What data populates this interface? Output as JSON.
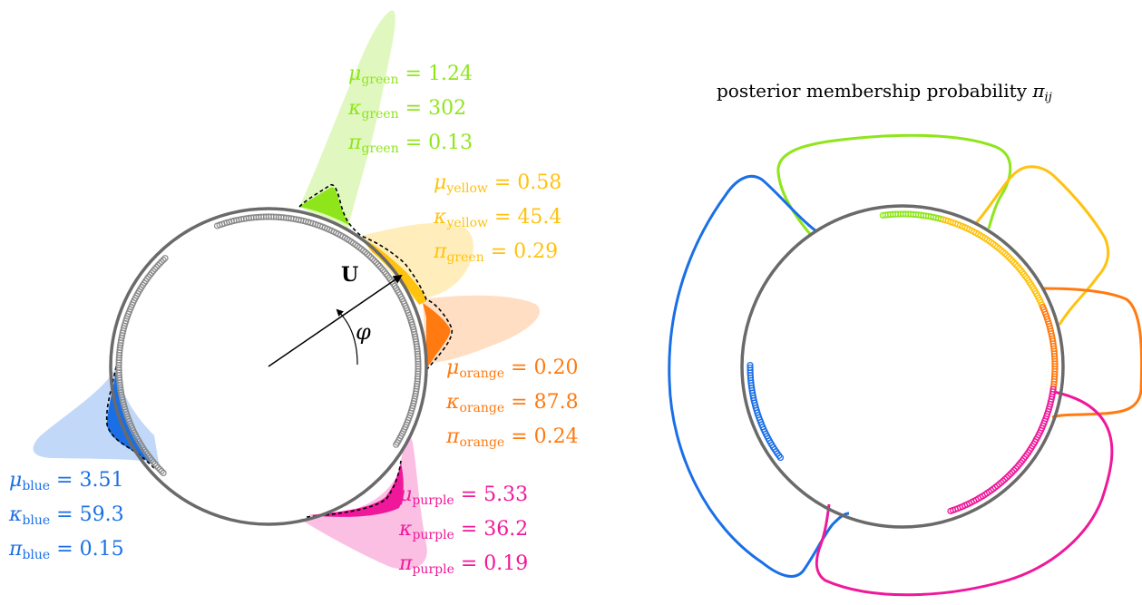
{
  "colors": {
    "green": "#8ee61a",
    "yellow": "#ffc20e",
    "orange": "#ff7a10",
    "blue": "#1a6fe6",
    "purple": "#f0189a",
    "circle": "#6a6a6a",
    "dashed": "#000000"
  },
  "left_panel": {
    "vector_label": "U",
    "angle_label": "φ",
    "components": [
      {
        "key": "green",
        "mu_sym": "μ",
        "kappa_sym": "κ",
        "pi_sym": "π",
        "mu_sub": "green",
        "mu": "1.24",
        "kappa_sub": "green",
        "kappa": "302",
        "pi_sub": "green",
        "pi": "0.13",
        "mean_angle": 1.24,
        "kappa_value": 302,
        "weight": 0.13
      },
      {
        "key": "yellow",
        "mu_sym": "μ",
        "kappa_sym": "κ",
        "pi_sym": "π",
        "mu_sub": "yellow",
        "mu": "0.58",
        "kappa_sub": "yellow",
        "kappa": "45.4",
        "pi_sub": "green",
        "pi": "0.29",
        "mean_angle": 0.58,
        "kappa_value": 45.4,
        "weight": 0.29
      },
      {
        "key": "orange",
        "mu_sym": "μ",
        "kappa_sym": "κ",
        "pi_sym": "π",
        "mu_sub": "orange",
        "mu": "0.20",
        "kappa_sub": "orange",
        "kappa": "87.8",
        "pi_sub": "orange",
        "pi": "0.24",
        "mean_angle": 0.2,
        "kappa_value": 87.8,
        "weight": 0.24
      },
      {
        "key": "blue",
        "mu_sym": "μ",
        "kappa_sym": "κ",
        "pi_sym": "π",
        "mu_sub": "blue",
        "mu": "3.51",
        "kappa_sub": "blue",
        "kappa": "59.3",
        "pi_sub": "blue",
        "pi": "0.15",
        "mean_angle": 3.51,
        "kappa_value": 59.3,
        "weight": 0.15
      },
      {
        "key": "purple",
        "mu_sym": "μ",
        "kappa_sym": "κ",
        "pi_sym": "π",
        "mu_sub": "purple",
        "mu": "5.33",
        "kappa_sub": "purple",
        "kappa": "36.2",
        "pi_sub": "purple",
        "pi": "0.19",
        "mean_angle": 5.33,
        "kappa_value": 36.2,
        "weight": 0.19
      }
    ]
  },
  "right_panel": {
    "title_text": "posterior membership probability ",
    "title_sym": "π",
    "title_sub": "ij"
  }
}
